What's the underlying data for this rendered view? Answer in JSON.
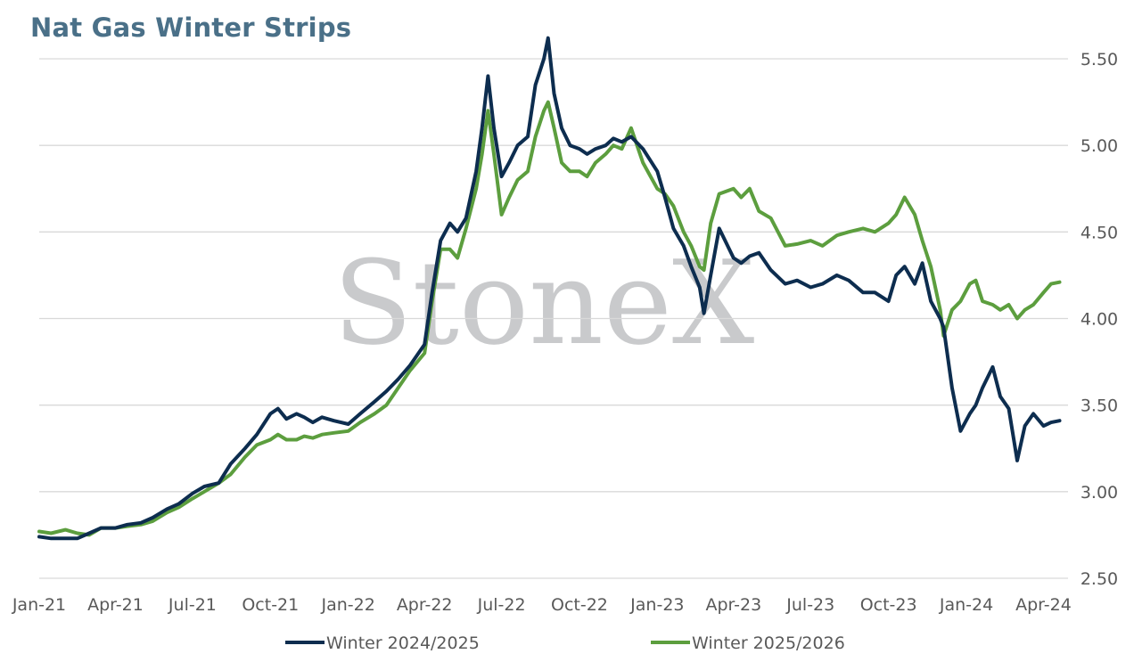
{
  "chart_data": {
    "type": "line",
    "title": "Nat Gas Winter Strips",
    "watermark": "StoneX",
    "xlabel": "",
    "ylabel": "",
    "ylim": [
      2.5,
      5.5
    ],
    "y_ticks": [
      "2.50",
      "3.00",
      "3.50",
      "4.00",
      "4.50",
      "5.00",
      "5.50"
    ],
    "y_axis_side": "right",
    "x_range": [
      "2021-01-01",
      "2024-04-30"
    ],
    "x_tick_labels": [
      {
        "date": "2021-01-01",
        "label": "Jan-21"
      },
      {
        "date": "2021-04-01",
        "label": "Apr-21"
      },
      {
        "date": "2021-07-01",
        "label": "Jul-21"
      },
      {
        "date": "2021-10-01",
        "label": "Oct-21"
      },
      {
        "date": "2022-01-01",
        "label": "Jan-22"
      },
      {
        "date": "2022-04-01",
        "label": "Apr-22"
      },
      {
        "date": "2022-07-01",
        "label": "Jul-22"
      },
      {
        "date": "2022-10-01",
        "label": "Oct-22"
      },
      {
        "date": "2023-01-01",
        "label": "Jan-23"
      },
      {
        "date": "2023-04-01",
        "label": "Apr-23"
      },
      {
        "date": "2023-07-01",
        "label": "Jul-23"
      },
      {
        "date": "2023-10-01",
        "label": "Oct-23"
      },
      {
        "date": "2024-01-01",
        "label": "Jan-24"
      },
      {
        "date": "2024-04-01",
        "label": "Apr-24"
      }
    ],
    "grid": "horizontal",
    "legend_position": "bottom",
    "series": [
      {
        "name": "Winter 2024/2025",
        "color": "#0d2d4f",
        "x": [
          "2021-01-01",
          "2021-01-15",
          "2021-02-01",
          "2021-02-15",
          "2021-03-01",
          "2021-03-15",
          "2021-04-01",
          "2021-04-15",
          "2021-05-01",
          "2021-05-15",
          "2021-06-01",
          "2021-06-15",
          "2021-07-01",
          "2021-07-15",
          "2021-08-01",
          "2021-08-15",
          "2021-09-01",
          "2021-09-15",
          "2021-10-01",
          "2021-10-10",
          "2021-10-20",
          "2021-11-01",
          "2021-11-10",
          "2021-11-20",
          "2021-12-01",
          "2021-12-15",
          "2022-01-01",
          "2022-01-15",
          "2022-02-01",
          "2022-02-15",
          "2022-03-01",
          "2022-03-15",
          "2022-04-01",
          "2022-04-10",
          "2022-04-20",
          "2022-05-01",
          "2022-05-10",
          "2022-05-20",
          "2022-06-01",
          "2022-06-08",
          "2022-06-15",
          "2022-06-22",
          "2022-07-01",
          "2022-07-10",
          "2022-07-20",
          "2022-08-01",
          "2022-08-10",
          "2022-08-20",
          "2022-08-25",
          "2022-09-01",
          "2022-09-10",
          "2022-09-20",
          "2022-10-01",
          "2022-10-10",
          "2022-10-20",
          "2022-11-01",
          "2022-11-10",
          "2022-11-20",
          "2022-12-01",
          "2022-12-15",
          "2023-01-01",
          "2023-01-10",
          "2023-01-20",
          "2023-02-01",
          "2023-02-10",
          "2023-02-20",
          "2023-02-25",
          "2023-03-05",
          "2023-03-15",
          "2023-04-01",
          "2023-04-10",
          "2023-04-20",
          "2023-05-01",
          "2023-05-15",
          "2023-06-01",
          "2023-06-15",
          "2023-07-01",
          "2023-07-15",
          "2023-08-01",
          "2023-08-15",
          "2023-09-01",
          "2023-09-15",
          "2023-10-01",
          "2023-10-10",
          "2023-10-20",
          "2023-11-01",
          "2023-11-10",
          "2023-11-20",
          "2023-12-01",
          "2023-12-05",
          "2023-12-15",
          "2023-12-25",
          "2024-01-05",
          "2024-01-12",
          "2024-01-20",
          "2024-02-01",
          "2024-02-10",
          "2024-02-20",
          "2024-03-01",
          "2024-03-10",
          "2024-03-20",
          "2024-04-01",
          "2024-04-10",
          "2024-04-20"
        ],
        "values": [
          2.74,
          2.73,
          2.73,
          2.73,
          2.76,
          2.79,
          2.79,
          2.81,
          2.82,
          2.85,
          2.9,
          2.93,
          2.99,
          3.03,
          3.05,
          3.16,
          3.25,
          3.33,
          3.45,
          3.48,
          3.42,
          3.45,
          3.43,
          3.4,
          3.43,
          3.41,
          3.39,
          3.45,
          3.52,
          3.58,
          3.65,
          3.73,
          3.85,
          4.15,
          4.45,
          4.55,
          4.5,
          4.58,
          4.85,
          5.1,
          5.4,
          5.1,
          4.82,
          4.9,
          5.0,
          5.05,
          5.35,
          5.5,
          5.62,
          5.3,
          5.1,
          5.0,
          4.98,
          4.95,
          4.98,
          5.0,
          5.04,
          5.02,
          5.05,
          4.98,
          4.85,
          4.7,
          4.52,
          4.42,
          4.3,
          4.18,
          4.03,
          4.25,
          4.52,
          4.35,
          4.32,
          4.36,
          4.38,
          4.28,
          4.2,
          4.22,
          4.18,
          4.2,
          4.25,
          4.22,
          4.15,
          4.15,
          4.1,
          4.25,
          4.3,
          4.2,
          4.32,
          4.1,
          4.0,
          3.95,
          3.6,
          3.35,
          3.45,
          3.5,
          3.6,
          3.72,
          3.55,
          3.48,
          3.18,
          3.38,
          3.45,
          3.38,
          3.4,
          3.41
        ]
      },
      {
        "name": "Winter 2025/2026",
        "color": "#5c9e3e",
        "x": [
          "2021-01-01",
          "2021-01-15",
          "2021-02-01",
          "2021-02-15",
          "2021-03-01",
          "2021-03-15",
          "2021-04-01",
          "2021-04-15",
          "2021-05-01",
          "2021-05-15",
          "2021-06-01",
          "2021-06-15",
          "2021-07-01",
          "2021-07-15",
          "2021-08-01",
          "2021-08-15",
          "2021-09-01",
          "2021-09-15",
          "2021-10-01",
          "2021-10-10",
          "2021-10-20",
          "2021-11-01",
          "2021-11-10",
          "2021-11-20",
          "2021-12-01",
          "2021-12-15",
          "2022-01-01",
          "2022-01-15",
          "2022-02-01",
          "2022-02-15",
          "2022-03-01",
          "2022-03-15",
          "2022-04-01",
          "2022-04-10",
          "2022-04-20",
          "2022-05-01",
          "2022-05-10",
          "2022-05-20",
          "2022-06-01",
          "2022-06-08",
          "2022-06-15",
          "2022-06-22",
          "2022-07-01",
          "2022-07-10",
          "2022-07-20",
          "2022-08-01",
          "2022-08-10",
          "2022-08-20",
          "2022-08-25",
          "2022-09-01",
          "2022-09-10",
          "2022-09-20",
          "2022-10-01",
          "2022-10-10",
          "2022-10-20",
          "2022-11-01",
          "2022-11-10",
          "2022-11-20",
          "2022-12-01",
          "2022-12-15",
          "2023-01-01",
          "2023-01-10",
          "2023-01-20",
          "2023-02-01",
          "2023-02-10",
          "2023-02-20",
          "2023-02-25",
          "2023-03-05",
          "2023-03-15",
          "2023-04-01",
          "2023-04-10",
          "2023-04-20",
          "2023-05-01",
          "2023-05-15",
          "2023-06-01",
          "2023-06-15",
          "2023-07-01",
          "2023-07-15",
          "2023-08-01",
          "2023-08-15",
          "2023-09-01",
          "2023-09-15",
          "2023-10-01",
          "2023-10-10",
          "2023-10-20",
          "2023-11-01",
          "2023-11-10",
          "2023-11-20",
          "2023-12-01",
          "2023-12-05",
          "2023-12-15",
          "2023-12-25",
          "2024-01-05",
          "2024-01-12",
          "2024-01-20",
          "2024-02-01",
          "2024-02-10",
          "2024-02-20",
          "2024-03-01",
          "2024-03-10",
          "2024-03-20",
          "2024-04-01",
          "2024-04-10",
          "2024-04-20"
        ],
        "values": [
          2.77,
          2.76,
          2.78,
          2.76,
          2.75,
          2.79,
          2.79,
          2.8,
          2.81,
          2.83,
          2.88,
          2.91,
          2.96,
          3.0,
          3.05,
          3.1,
          3.2,
          3.27,
          3.3,
          3.33,
          3.3,
          3.3,
          3.32,
          3.31,
          3.33,
          3.34,
          3.35,
          3.4,
          3.45,
          3.5,
          3.6,
          3.7,
          3.8,
          4.1,
          4.4,
          4.4,
          4.35,
          4.52,
          4.75,
          4.95,
          5.2,
          4.95,
          4.6,
          4.7,
          4.8,
          4.85,
          5.05,
          5.2,
          5.25,
          5.1,
          4.9,
          4.85,
          4.85,
          4.82,
          4.9,
          4.95,
          5.0,
          4.98,
          5.1,
          4.9,
          4.75,
          4.72,
          4.65,
          4.5,
          4.42,
          4.3,
          4.28,
          4.55,
          4.72,
          4.75,
          4.7,
          4.75,
          4.62,
          4.58,
          4.42,
          4.43,
          4.45,
          4.42,
          4.48,
          4.5,
          4.52,
          4.5,
          4.55,
          4.6,
          4.7,
          4.6,
          4.45,
          4.3,
          4.05,
          3.9,
          4.05,
          4.1,
          4.2,
          4.22,
          4.1,
          4.08,
          4.05,
          4.08,
          4.0,
          4.05,
          4.08,
          4.15,
          4.2,
          4.21
        ]
      }
    ]
  }
}
